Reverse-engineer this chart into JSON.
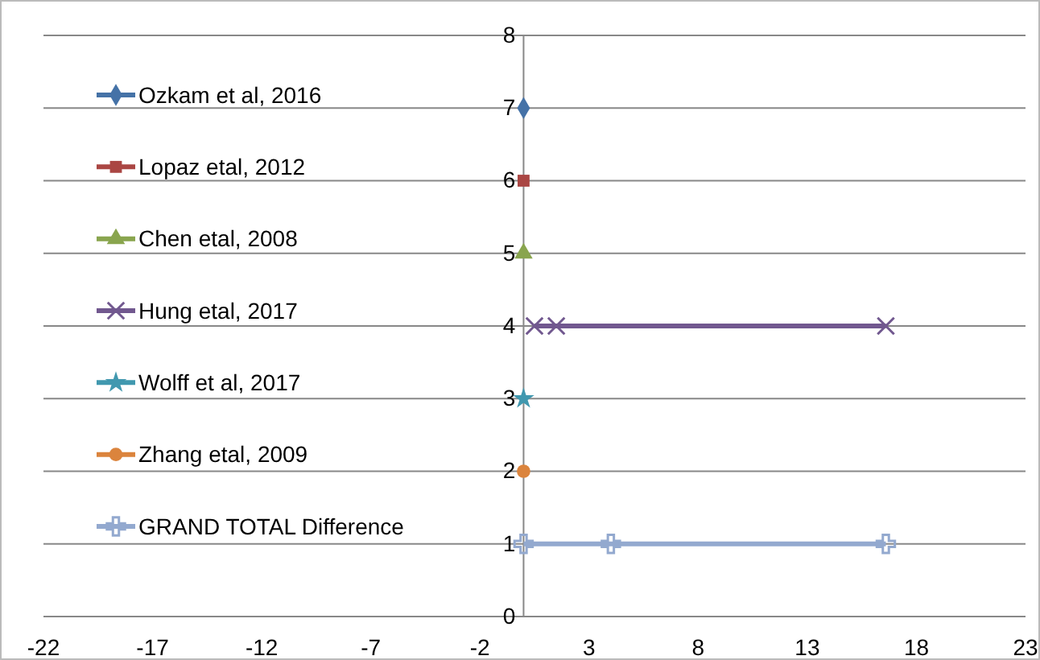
{
  "chart_data": {
    "type": "line",
    "xlim": [
      -22,
      23
    ],
    "xticks": [
      -22,
      -17,
      -12,
      -7,
      -2,
      3,
      8,
      13,
      18,
      23
    ],
    "ylim": [
      0,
      8
    ],
    "yticks": [
      0,
      1,
      2,
      3,
      4,
      5,
      6,
      7,
      8
    ],
    "grid": "y",
    "legend": "left",
    "series": [
      {
        "name": "Ozkam et al, 2016",
        "color": "#4572a7",
        "marker": "diamond",
        "x": [
          0
        ],
        "values": [
          7
        ]
      },
      {
        "name": "Lopaz etal, 2012",
        "color": "#aa4643",
        "marker": "square",
        "x": [
          0
        ],
        "values": [
          6
        ]
      },
      {
        "name": "Chen etal, 2008",
        "color": "#89a54e",
        "marker": "triangle",
        "x": [
          0
        ],
        "values": [
          5
        ]
      },
      {
        "name": "Hung etal, 2017",
        "color": "#71588f",
        "marker": "cross",
        "x": [
          0.5,
          1.5,
          16.6
        ],
        "values": [
          4,
          4,
          4
        ]
      },
      {
        "name": "Wolff et al, 2017",
        "color": "#4198af",
        "marker": "star",
        "x": [
          0
        ],
        "values": [
          3
        ]
      },
      {
        "name": "Zhang etal, 2009",
        "color": "#db843d",
        "marker": "circle",
        "x": [
          0
        ],
        "values": [
          2
        ]
      },
      {
        "name": "GRAND TOTAL Difference",
        "color": "#93a9cf",
        "marker": "plus",
        "x": [
          0,
          4,
          16.6
        ],
        "values": [
          1,
          1,
          1
        ]
      }
    ]
  }
}
